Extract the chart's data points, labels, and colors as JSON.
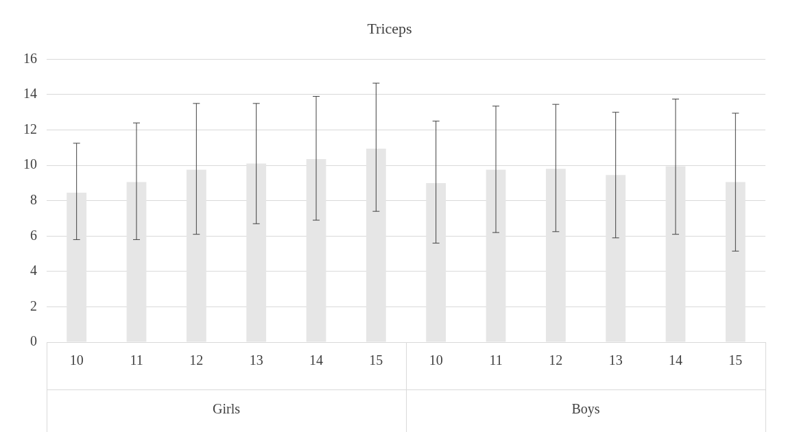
{
  "chart_data": {
    "type": "bar",
    "title": "Triceps",
    "categories": [
      "10",
      "11",
      "12",
      "13",
      "14",
      "15",
      "10",
      "11",
      "12",
      "13",
      "14",
      "15"
    ],
    "values": [
      8.45,
      9.05,
      9.75,
      10.1,
      10.35,
      10.95,
      9.0,
      9.75,
      9.8,
      9.45,
      9.95,
      9.05
    ],
    "errors": [
      [
        5.8,
        11.25
      ],
      [
        5.8,
        12.4
      ],
      [
        6.1,
        13.5
      ],
      [
        6.7,
        13.5
      ],
      [
        6.9,
        13.9
      ],
      [
        7.4,
        14.65
      ],
      [
        5.6,
        12.5
      ],
      [
        6.2,
        13.35
      ],
      [
        6.25,
        13.45
      ],
      [
        5.9,
        13.0
      ],
      [
        6.1,
        13.75
      ],
      [
        5.15,
        12.95
      ]
    ],
    "color": "#e6e6e6",
    "ylim": [
      0,
      16
    ],
    "yticks": [
      0,
      2,
      4,
      6,
      8,
      10,
      12,
      14,
      16
    ],
    "grid": "y",
    "legend": false,
    "annotations": [
      "Girls",
      "Boys"
    ]
  }
}
